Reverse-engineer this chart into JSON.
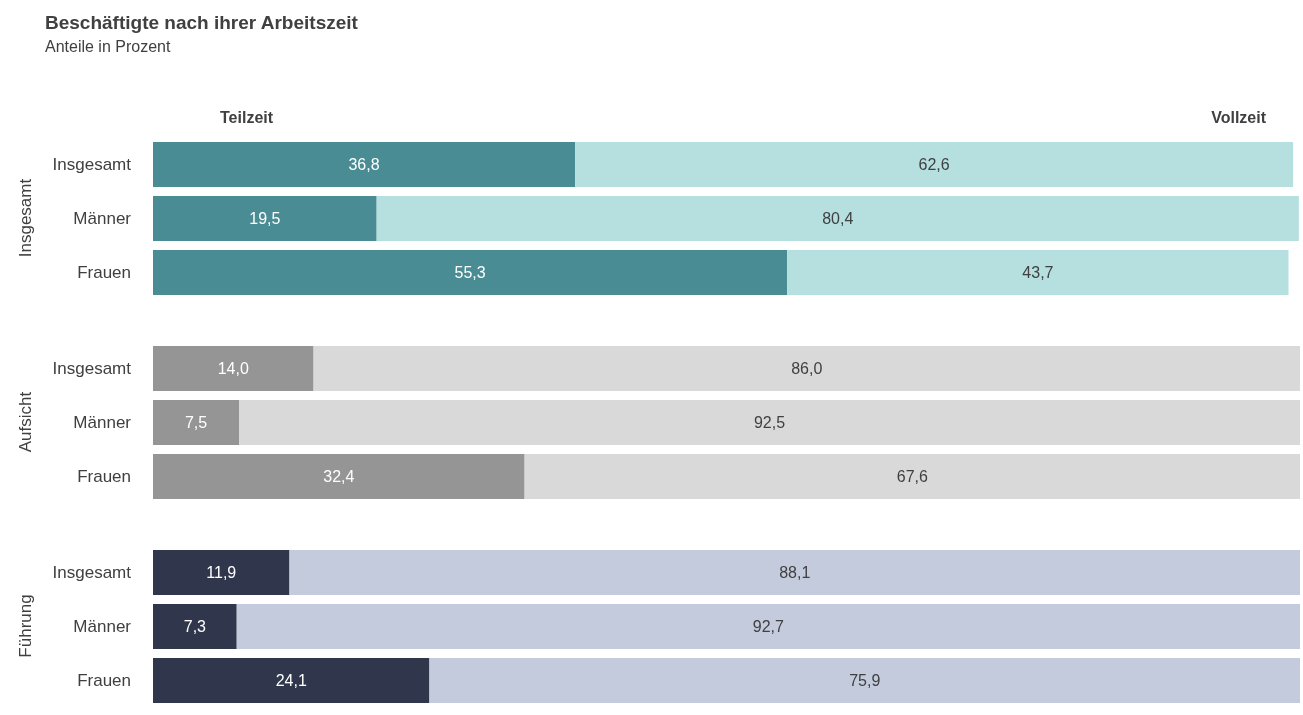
{
  "chart_data": [
    {
      "type": "bar",
      "title": "Beschäftigte nach ihrer Arbeitszeit",
      "subtitle": "Anteile in Prozent",
      "ylabel": "Insgesamt",
      "orientation": "horizontal",
      "stacked": true,
      "categories": [
        "Insgesamt",
        "Männer",
        "Frauen"
      ],
      "series": [
        {
          "name": "Teilzeit",
          "color": "#4a8c93",
          "values": [
            36.8,
            19.5,
            55.3
          ],
          "value_labels": [
            "36,8",
            "19,5",
            "55,3"
          ]
        },
        {
          "name": "Vollzeit",
          "color": "#b6dfe0",
          "values": [
            62.6,
            80.4,
            43.7
          ],
          "value_labels": [
            "62,6",
            "80,4",
            "43,7"
          ]
        }
      ],
      "xlim": [
        0,
        100
      ],
      "tick_labels": "y"
    },
    {
      "type": "bar",
      "ylabel": "Aufsicht",
      "orientation": "horizontal",
      "stacked": true,
      "categories": [
        "Insgesamt",
        "Männer",
        "Frauen"
      ],
      "series": [
        {
          "color": "#959595",
          "values": [
            14.0,
            7.5,
            32.4
          ],
          "value_labels": [
            "14,0",
            "7,5",
            "32,4"
          ]
        },
        {
          "color": "#d9d9d9",
          "values": [
            86.0,
            92.5,
            67.6
          ],
          "value_labels": [
            "86,0",
            "92,5",
            "67,6"
          ]
        }
      ],
      "xlim": [
        0,
        100
      ],
      "tick_labels": "y"
    },
    {
      "type": "bar",
      "ylabel": "Führung",
      "orientation": "horizontal",
      "stacked": true,
      "categories": [
        "Insgesamt",
        "Männer",
        "Frauen"
      ],
      "series": [
        {
          "color": "#30374d",
          "values": [
            11.9,
            7.3,
            24.1
          ],
          "value_labels": [
            "11,9",
            "7,3",
            "24,1"
          ]
        },
        {
          "color": "#c3cbdc",
          "values": [
            88.1,
            92.7,
            75.9
          ],
          "value_labels": [
            "88,1",
            "92,7",
            "75,9"
          ]
        }
      ],
      "xlim": [
        0,
        100
      ],
      "tick_labels": "y"
    }
  ]
}
